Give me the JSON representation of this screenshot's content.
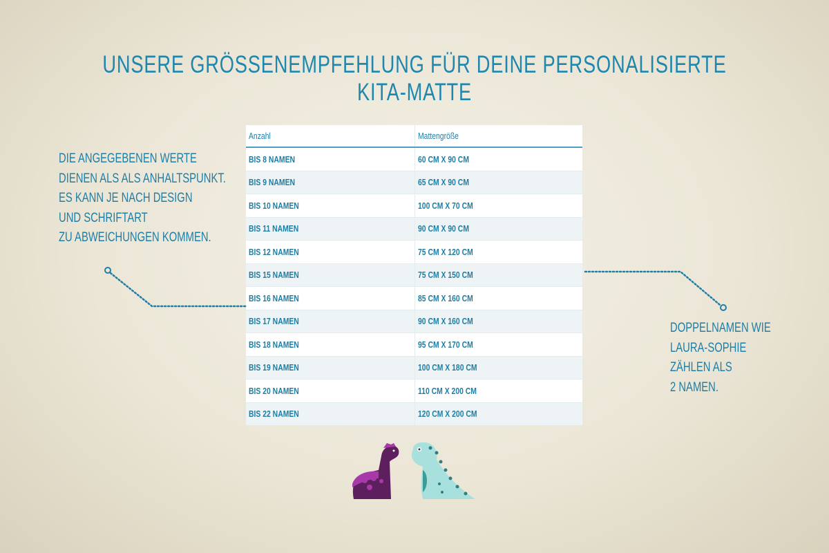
{
  "title": "Unsere Größenempfehlung für deine personalisierte Kita-Matte",
  "left_note": [
    "Die angegebenen Werte",
    "dienen als als Anhaltspunkt.",
    "Es kann je nach Design",
    "und Schriftart",
    "zu Abweichungen kommen."
  ],
  "right_note": [
    "Doppelnamen wie",
    "Laura-Sophie",
    "zählen als",
    "2 Namen."
  ],
  "table": {
    "headers": [
      "Anzahl",
      "Mattengröße"
    ],
    "rows": [
      [
        "bis 8 Namen",
        "60 cm x 90 cm"
      ],
      [
        "bis 9 Namen",
        "65 cm x 90 cm"
      ],
      [
        "bis 10 Namen",
        "100 cm x 70 cm"
      ],
      [
        "bis 11 Namen",
        "90 cm x 90 cm"
      ],
      [
        "bis 12 Namen",
        "75 cm x 120 cm"
      ],
      [
        "bis 15 Namen",
        "75 cm x 150 cm"
      ],
      [
        "bis 16 Namen",
        "85 cm x 160 cm"
      ],
      [
        "bis 17 Namen",
        "90 cm x 160 cm"
      ],
      [
        "bis 18 Namen",
        "95 cm x 170 cm"
      ],
      [
        "bis 19 Namen",
        "100 cm x 180 cm"
      ],
      [
        "bis 20 Namen",
        "110 cm x 200 cm"
      ],
      [
        "bis 22 Namen",
        "120 cm x 200 cm"
      ]
    ]
  },
  "colors": {
    "accent": "#1f7ea5",
    "purple_dino": "#5e1f5e",
    "teal_dino": "#a8e0de"
  },
  "icons": [
    "purple-dinosaur-icon",
    "teal-dinosaur-icon"
  ]
}
